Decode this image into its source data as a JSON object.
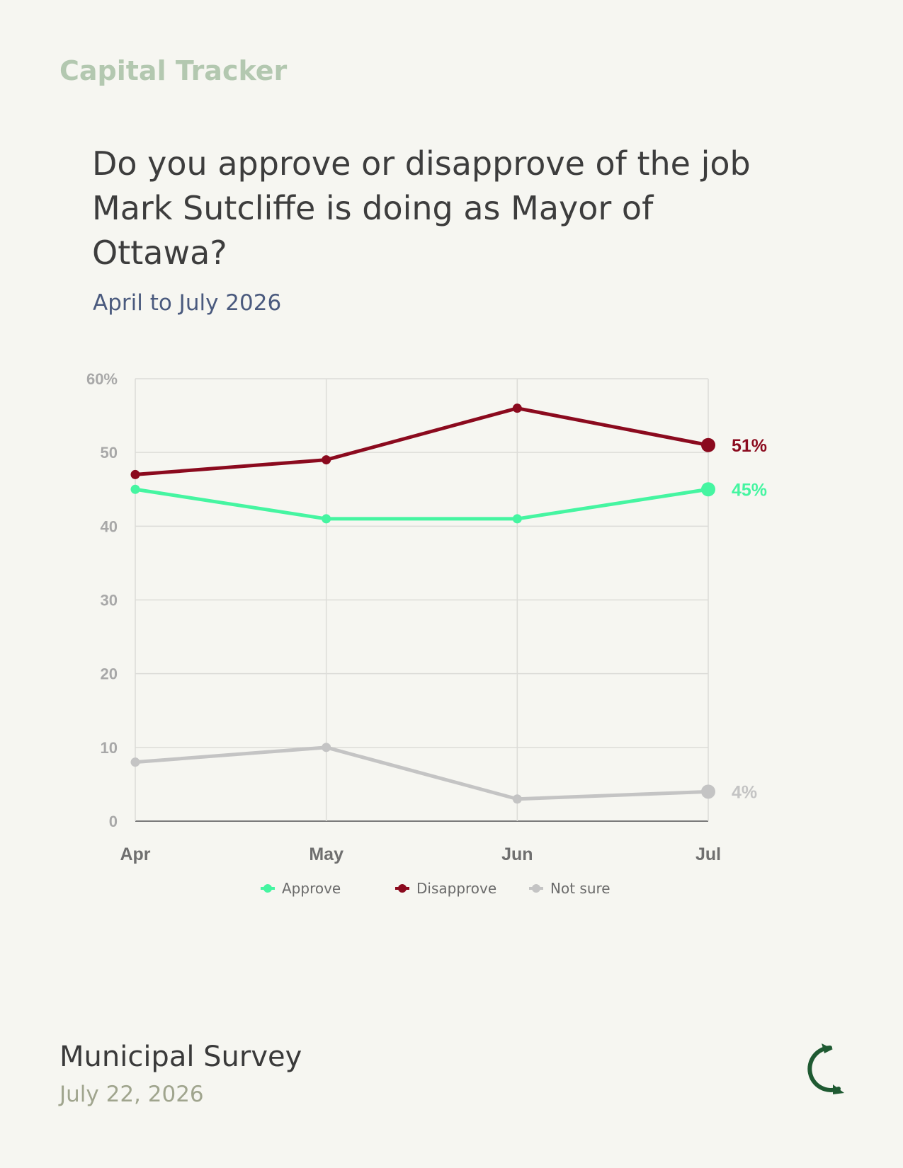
{
  "header": {
    "brand": "Capital Tracker",
    "question": "Do you approve or disapprove of the job Mark Sutcliffe is doing as Mayor of Ottawa?",
    "subtitle": "April to July 2026"
  },
  "footer": {
    "title": "Municipal Survey",
    "date": "July 22, 2026",
    "logo_icon": "c-arc-logo-icon"
  },
  "chart_data": {
    "type": "line",
    "categories": [
      "Apr",
      "May",
      "Jun",
      "Jul"
    ],
    "y_ticks": [
      "0",
      "10",
      "20",
      "30",
      "40",
      "50",
      "60%"
    ],
    "ylim": [
      0,
      60
    ],
    "grid": true,
    "legend_position": "bottom-center",
    "series": [
      {
        "name": "Approve",
        "values": [
          45,
          41,
          41,
          45
        ],
        "color": "#45f5a1",
        "end_label": "45%"
      },
      {
        "name": "Disapprove",
        "values": [
          47,
          49,
          56,
          51
        ],
        "color": "#8b0a1e",
        "end_label": "51%"
      },
      {
        "name": "Not sure",
        "values": [
          8,
          10,
          3,
          4
        ],
        "color": "#c4c4c4",
        "end_label": "4%"
      }
    ]
  }
}
